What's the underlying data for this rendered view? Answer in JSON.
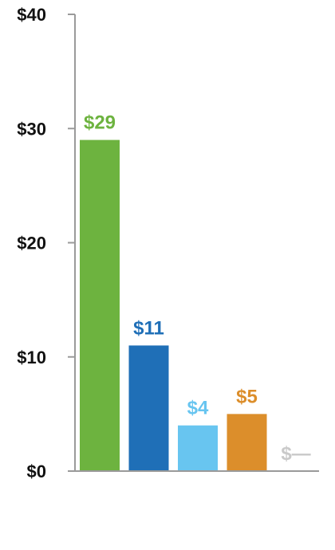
{
  "chart_data": {
    "type": "bar",
    "categories": [
      "",
      "",
      "",
      "",
      ""
    ],
    "values": [
      29,
      11,
      4,
      5,
      0
    ],
    "data_labels": [
      "$29",
      "$11",
      "$4",
      "$5",
      "$—"
    ],
    "colors": [
      "#6db33f",
      "#1f6fb7",
      "#68c5f0",
      "#dc8e2b",
      "#c9c9c9"
    ],
    "ylim": [
      0,
      40
    ],
    "yticks": [
      0,
      10,
      20,
      30,
      40
    ],
    "ytick_labels": [
      "$0",
      "$10",
      "$20",
      "$30",
      "$40"
    ],
    "title": "",
    "xlabel": "",
    "ylabel": "",
    "grid": false,
    "legend": "none"
  }
}
